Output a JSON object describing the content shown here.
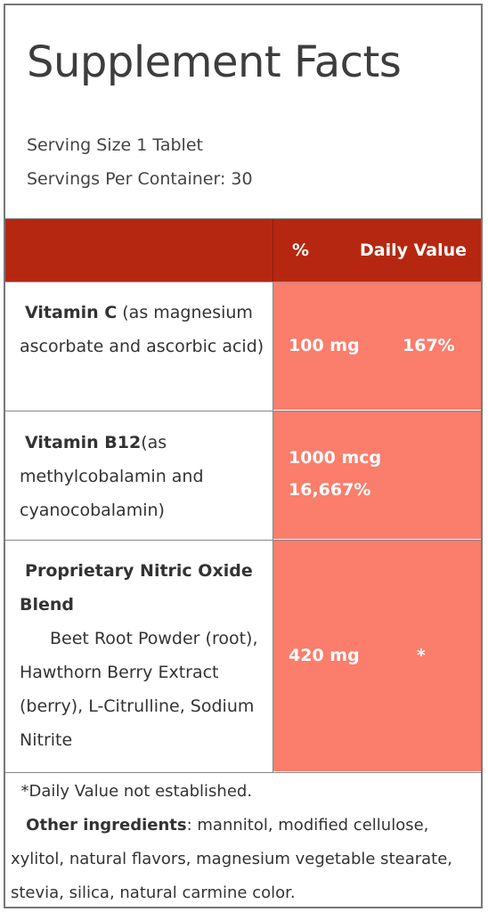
{
  "title": "Supplement Facts",
  "serving_size": "Serving Size 1 Tablet",
  "servings_per_container": "Servings Per Container: 30",
  "header": {
    "percent": "%",
    "daily_value": "Daily Value"
  },
  "rows": [
    {
      "name": "Vitamin C",
      "detail": " (as magnesium ascorbate and ascorbic acid)",
      "amount": "100 mg",
      "dv": "167%"
    },
    {
      "name": "Vitamin B12",
      "detail": "(as methylcobalamin and cyanocobalamin)",
      "amount": "1000 mcg",
      "dv": "16,667%"
    },
    {
      "name": "Proprietary Nitric Oxide Blend",
      "detail": "Beet Root Powder (root), Hawthorn Berry Extract (berry), L-Citrulline, Sodium Nitrite",
      "amount": "420 mg",
      "dv": "*"
    }
  ],
  "footnote": "*Daily Value not established.",
  "other_label": "Other ingredients",
  "other_text": ": mannitol, modified cellulose, xylitol, natural flavors, magnesium vegetable stearate, stevia, silica, natural carmine color.",
  "colors": {
    "header": "#b52710",
    "value_cells": "#fb7d6b",
    "border": "#888888"
  }
}
